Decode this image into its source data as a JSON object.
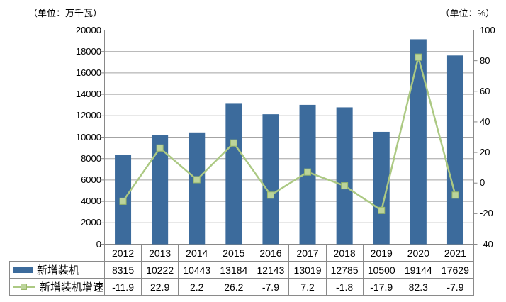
{
  "units": {
    "left": "（单位：万千瓦）",
    "right": "（单位：%）"
  },
  "chart_data": {
    "type": "bar",
    "subtype": "combo-bar-line",
    "categories": [
      "2012",
      "2013",
      "2014",
      "2015",
      "2016",
      "2017",
      "2018",
      "2019",
      "2020",
      "2021"
    ],
    "series": [
      {
        "name": "新增装机",
        "type": "bar",
        "axis": "left",
        "values": [
          8315,
          10222,
          10443,
          13184,
          12143,
          13019,
          12785,
          10500,
          19144,
          17629
        ]
      },
      {
        "name": "新增装机增速",
        "type": "line",
        "axis": "right",
        "values": [
          -11.9,
          22.9,
          2.2,
          26.2,
          -7.9,
          7.2,
          -1.8,
          -17.9,
          82.3,
          -7.9
        ]
      }
    ],
    "left_axis": {
      "unit": "（单位：万千瓦）",
      "min": 0,
      "max": 20000,
      "step": 2000
    },
    "right_axis": {
      "unit": "（单位：%）",
      "min": -40,
      "max": 100,
      "step": 20
    },
    "grid": true,
    "legend_position": "table-left",
    "colors": {
      "bar": "#3c6b9c",
      "line": "#acc983",
      "marker_fill": "#bcd49a",
      "marker_stroke": "#9bb96b",
      "grid": "#a3a3a3",
      "axis": "#898989",
      "table_border": "#8a8a8a",
      "text": "#000000"
    }
  }
}
